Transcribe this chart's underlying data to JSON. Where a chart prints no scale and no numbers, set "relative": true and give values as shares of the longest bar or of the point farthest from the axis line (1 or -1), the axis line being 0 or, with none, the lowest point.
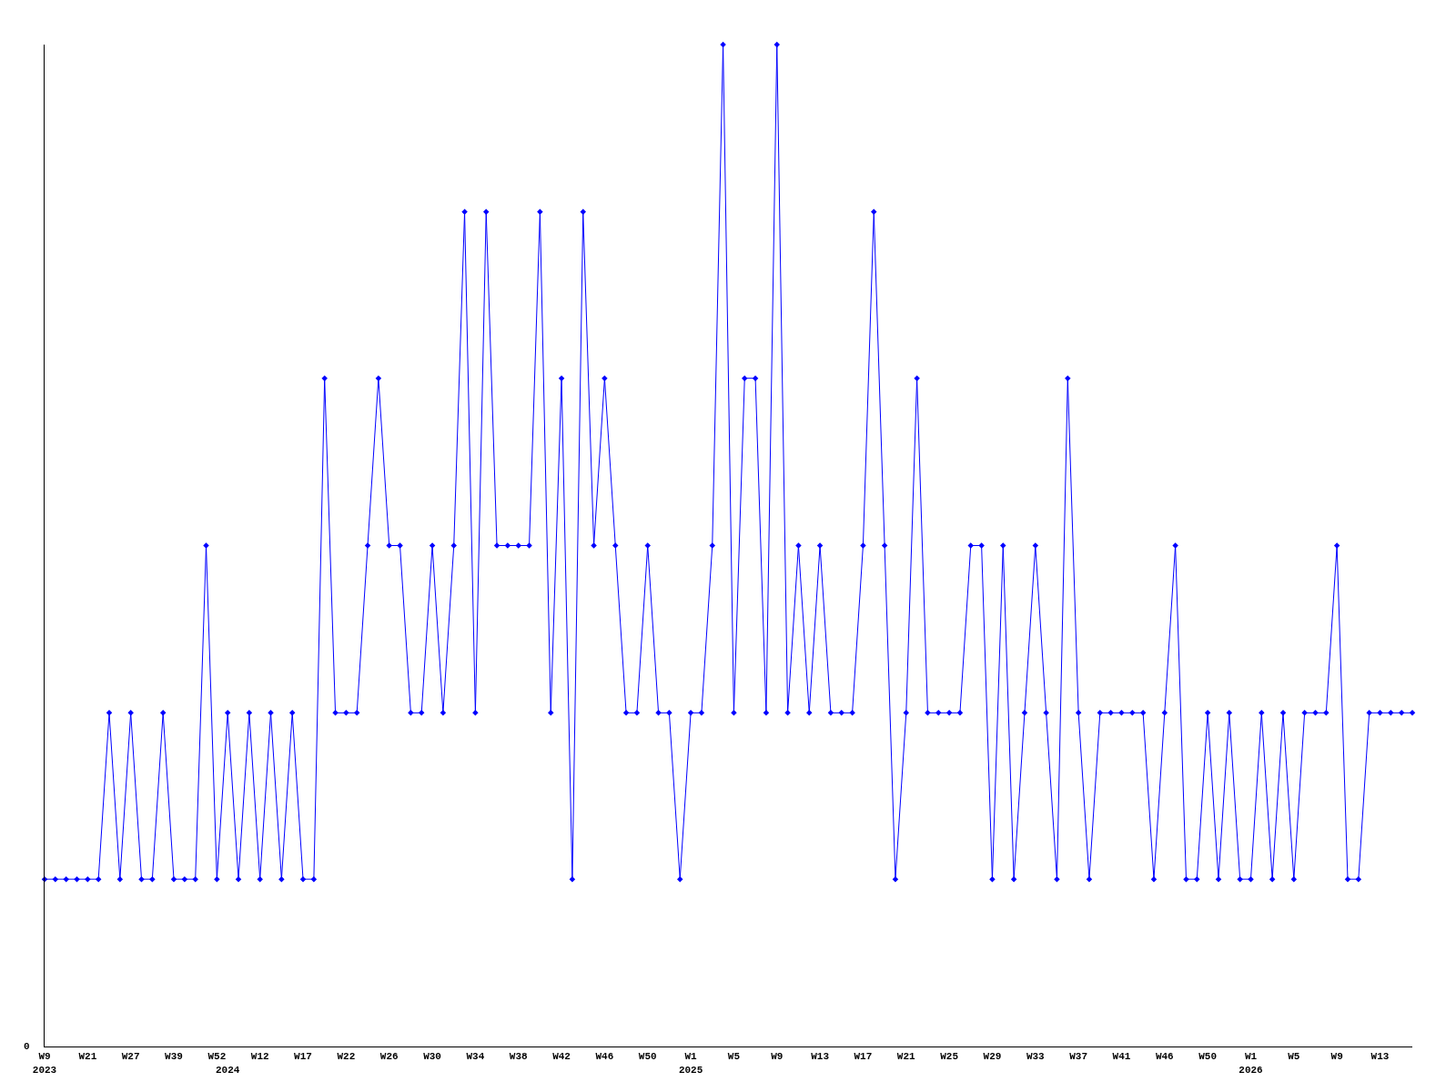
{
  "chart_data": {
    "type": "line",
    "relative": true,
    "marker": "diamond",
    "line_style": "solid",
    "annotations": [
      "0"
    ],
    "categories": [
      "W9\n2023",
      null,
      null,
      null,
      "W21",
      null,
      null,
      null,
      "W27",
      null,
      null,
      null,
      "W39",
      null,
      null,
      null,
      "W52",
      "\n2024",
      null,
      null,
      "W12",
      null,
      null,
      null,
      "W17",
      null,
      null,
      null,
      "W22",
      null,
      null,
      null,
      "W26",
      null,
      null,
      null,
      "W30",
      null,
      null,
      null,
      "W34",
      null,
      null,
      null,
      "W38",
      null,
      null,
      null,
      "W42",
      null,
      null,
      null,
      "W46",
      null,
      null,
      null,
      "W50",
      null,
      null,
      null,
      "W1\n2025",
      null,
      null,
      null,
      "W5",
      null,
      null,
      null,
      "W9",
      null,
      null,
      null,
      "W13",
      null,
      null,
      null,
      "W17",
      null,
      null,
      null,
      "W21",
      null,
      null,
      null,
      "W25",
      null,
      null,
      null,
      "W29",
      null,
      null,
      null,
      "W33",
      null,
      null,
      null,
      "W37",
      null,
      null,
      null,
      "W41",
      null,
      null,
      null,
      "W46",
      null,
      null,
      null,
      "W50",
      null,
      null,
      null,
      "W1\n2026",
      null,
      null,
      null,
      "W5",
      null,
      null,
      null,
      "W9",
      null,
      null,
      null,
      "W13",
      null,
      null,
      null
    ],
    "series": [
      {
        "color": "#0000ff",
        "values": [
          0.167,
          0.167,
          0.167,
          0.167,
          0.167,
          0.167,
          0.333,
          0.167,
          0.333,
          0.167,
          0.167,
          0.333,
          0.167,
          0.167,
          0.167,
          0.5,
          0.167,
          0.333,
          0.167,
          0.333,
          0.167,
          0.333,
          0.167,
          0.333,
          0.167,
          0.167,
          0.667,
          0.333,
          0.333,
          0.333,
          0.5,
          0.667,
          0.5,
          0.5,
          0.333,
          0.333,
          0.5,
          0.333,
          0.5,
          0.833,
          0.333,
          0.833,
          0.5,
          0.5,
          0.5,
          0.5,
          0.833,
          0.333,
          0.667,
          0.167,
          0.833,
          0.5,
          0.667,
          0.5,
          0.333,
          0.333,
          0.5,
          0.333,
          0.333,
          0.167,
          0.333,
          0.333,
          0.5,
          1,
          0.333,
          0.667,
          0.667,
          0.333,
          1,
          0.333,
          0.5,
          0.333,
          0.5,
          0.333,
          0.333,
          0.333,
          0.5,
          0.833,
          0.5,
          0.167,
          0.333,
          0.667,
          0.333,
          0.333,
          0.333,
          0.333,
          0.5,
          0.5,
          0.167,
          0.5,
          0.167,
          0.333,
          0.5,
          0.333,
          0.167,
          0.667,
          0.333,
          0.167,
          0.333,
          0.333,
          0.333,
          0.333,
          0.333,
          0.167,
          0.333,
          0.5,
          0.167,
          0.167,
          0.333,
          0.167,
          0.333,
          0.167,
          0.167,
          0.333,
          0.167,
          0.333,
          0.167,
          0.333,
          0.333,
          0.333,
          0.5,
          0.167,
          0.167,
          0.333,
          0.333,
          0.333,
          0.333,
          0.333
        ]
      }
    ]
  }
}
